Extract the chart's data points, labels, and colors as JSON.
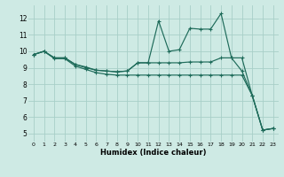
{
  "xlabel": "Humidex (Indice chaleur)",
  "xlim": [
    -0.5,
    23.5
  ],
  "ylim": [
    4.5,
    12.8
  ],
  "yticks": [
    5,
    6,
    7,
    8,
    9,
    10,
    11,
    12
  ],
  "xticks": [
    0,
    1,
    2,
    3,
    4,
    5,
    6,
    7,
    8,
    9,
    10,
    11,
    12,
    13,
    14,
    15,
    16,
    17,
    18,
    19,
    20,
    21,
    22,
    23
  ],
  "background_color": "#ceeae4",
  "line_color": "#1e6b5a",
  "grid_color": "#a8cfc8",
  "line1_x": [
    0,
    1,
    2,
    3,
    4,
    5,
    6,
    7,
    8,
    9,
    10,
    11,
    12,
    13,
    14,
    15,
    16,
    17,
    18,
    19,
    20,
    21,
    22,
    23
  ],
  "line1_y": [
    9.8,
    10.0,
    9.6,
    9.6,
    9.2,
    9.0,
    8.85,
    8.8,
    8.75,
    8.8,
    9.3,
    9.3,
    11.85,
    10.0,
    10.1,
    11.4,
    11.35,
    11.35,
    12.3,
    9.6,
    9.6,
    7.3,
    5.2,
    5.3
  ],
  "line2_x": [
    0,
    1,
    2,
    3,
    4,
    5,
    6,
    7,
    8,
    9,
    10,
    11,
    12,
    13,
    14,
    15,
    16,
    17,
    18,
    19,
    20,
    21,
    22,
    23
  ],
  "line2_y": [
    9.8,
    10.0,
    9.6,
    9.6,
    9.2,
    9.05,
    8.85,
    8.8,
    8.75,
    8.8,
    9.3,
    9.3,
    9.3,
    9.3,
    9.3,
    9.35,
    9.35,
    9.35,
    9.6,
    9.6,
    8.8,
    7.3,
    5.2,
    5.3
  ],
  "line3_x": [
    0,
    1,
    2,
    3,
    4,
    5,
    6,
    7,
    8,
    9,
    10,
    11,
    12,
    13,
    14,
    15,
    16,
    17,
    18,
    19,
    20,
    21,
    22,
    23
  ],
  "line3_y": [
    9.8,
    10.0,
    9.55,
    9.55,
    9.1,
    8.9,
    8.7,
    8.6,
    8.55,
    8.55,
    8.55,
    8.55,
    8.55,
    8.55,
    8.55,
    8.55,
    8.55,
    8.55,
    8.55,
    8.55,
    8.55,
    7.3,
    5.2,
    5.3
  ]
}
